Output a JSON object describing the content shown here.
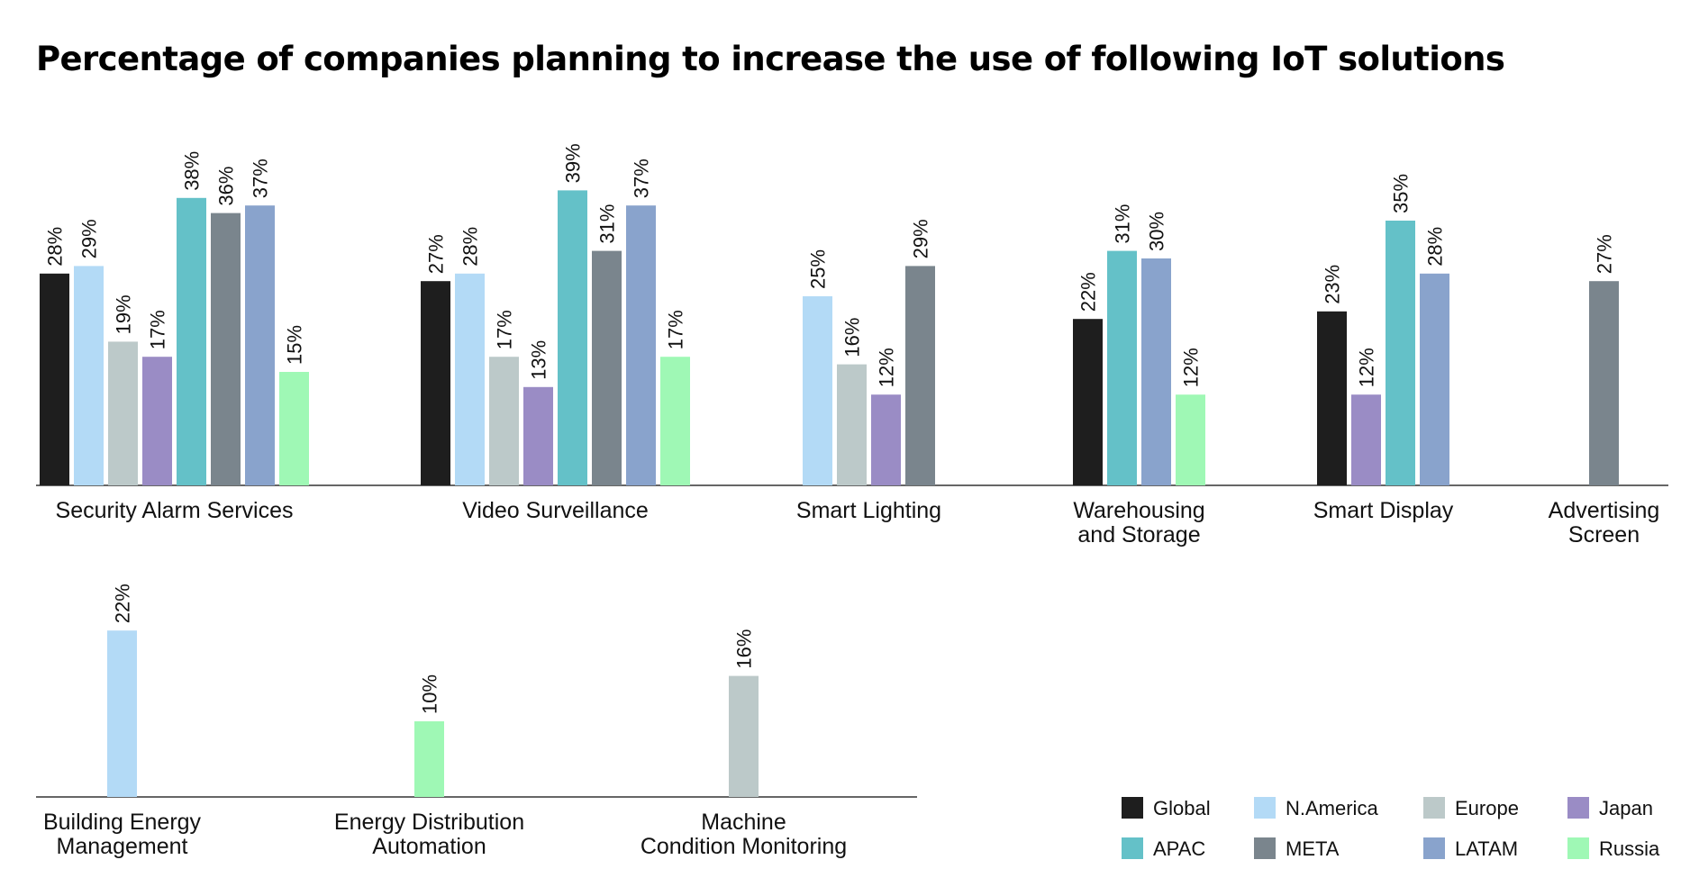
{
  "chart_data": {
    "type": "bar",
    "title": "Percentage of companies planning to increase the use of following IoT solutions",
    "unit": "%",
    "series": [
      {
        "name": "Global",
        "color": "#1e1e1e"
      },
      {
        "name": "N.America",
        "color": "#b3daf6"
      },
      {
        "name": "Europe",
        "color": "#bcc9c9"
      },
      {
        "name": "Japan",
        "color": "#9a8cc5"
      },
      {
        "name": "APAC",
        "color": "#64c1c8"
      },
      {
        "name": "META",
        "color": "#7a858d"
      },
      {
        "name": "LATAM",
        "color": "#89a3cc"
      },
      {
        "name": "Russia",
        "color": "#9ff8b5"
      }
    ],
    "categories": [
      {
        "label": [
          "Security Alarm Services"
        ],
        "bars": [
          {
            "series": "Global",
            "value": 28
          },
          {
            "series": "N.America",
            "value": 29
          },
          {
            "series": "Europe",
            "value": 19
          },
          {
            "series": "Japan",
            "value": 17
          },
          {
            "series": "APAC",
            "value": 38
          },
          {
            "series": "META",
            "value": 36
          },
          {
            "series": "LATAM",
            "value": 37
          },
          {
            "series": "Russia",
            "value": 15
          }
        ]
      },
      {
        "label": [
          "Video Surveillance"
        ],
        "bars": [
          {
            "series": "Global",
            "value": 27
          },
          {
            "series": "N.America",
            "value": 28
          },
          {
            "series": "Europe",
            "value": 17
          },
          {
            "series": "Japan",
            "value": 13
          },
          {
            "series": "APAC",
            "value": 39
          },
          {
            "series": "META",
            "value": 31
          },
          {
            "series": "LATAM",
            "value": 37
          },
          {
            "series": "Russia",
            "value": 17
          }
        ]
      },
      {
        "label": [
          "Smart Lighting"
        ],
        "bars": [
          {
            "series": "N.America",
            "value": 25
          },
          {
            "series": "Europe",
            "value": 16
          },
          {
            "series": "Japan",
            "value": 12
          },
          {
            "series": "META",
            "value": 29
          }
        ]
      },
      {
        "label": [
          "Warehousing",
          "and Storage"
        ],
        "bars": [
          {
            "series": "Global",
            "value": 22
          },
          {
            "series": "APAC",
            "value": 31
          },
          {
            "series": "LATAM",
            "value": 30
          },
          {
            "series": "Russia",
            "value": 12
          }
        ]
      },
      {
        "label": [
          "Smart Display"
        ],
        "bars": [
          {
            "series": "Global",
            "value": 23
          },
          {
            "series": "Japan",
            "value": 12
          },
          {
            "series": "APAC",
            "value": 35
          },
          {
            "series": "LATAM",
            "value": 28
          }
        ]
      },
      {
        "label": [
          "Advertising",
          "Screen"
        ],
        "bars": [
          {
            "series": "META",
            "value": 27
          }
        ]
      },
      {
        "label": [
          "Building Energy",
          "Management"
        ],
        "bars": [
          {
            "series": "N.America",
            "value": 22
          }
        ]
      },
      {
        "label": [
          "Energy Distribution",
          "Automation"
        ],
        "bars": [
          {
            "series": "Russia",
            "value": 10
          }
        ]
      },
      {
        "label": [
          "Machine",
          "Condition Monitoring"
        ],
        "bars": [
          {
            "series": "Europe",
            "value": 16
          }
        ]
      }
    ],
    "rows": [
      [
        0,
        1,
        2,
        3,
        4,
        5
      ],
      [
        6,
        7,
        8
      ]
    ],
    "legend_position": "bottom-right",
    "grid": false
  }
}
